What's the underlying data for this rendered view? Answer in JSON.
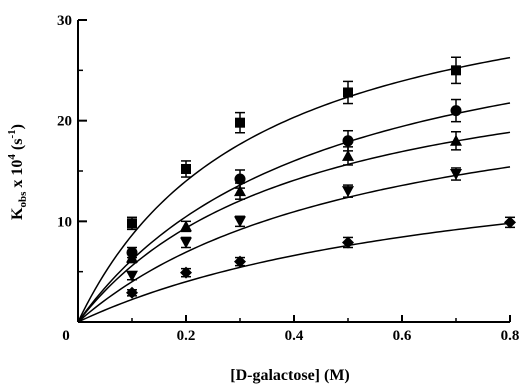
{
  "chart_data": {
    "type": "scatter",
    "xlabel": "[D-galactose] (M)",
    "ylabel_parts": [
      "K",
      "obs",
      " x 10",
      "4",
      " (s",
      "-1",
      ")"
    ],
    "xlim": [
      0,
      0.8
    ],
    "ylim": [
      0,
      30
    ],
    "xticks": [
      "0",
      "0.2",
      "0.4",
      "0.6",
      "0.8"
    ],
    "yticks": [
      "10",
      "20",
      "30"
    ],
    "grid": false,
    "legend": "none",
    "series": [
      {
        "marker": "square",
        "x": [
          0,
          0.1,
          0.2,
          0.3,
          0.5,
          0.7
        ],
        "y": [
          0,
          9.8,
          15.2,
          19.8,
          22.8,
          25.0
        ],
        "err": [
          0,
          0.6,
          0.8,
          1.0,
          1.1,
          1.3
        ],
        "fit": {
          "vmax": 37.1,
          "km": 0.33
        }
      },
      {
        "marker": "circle",
        "x": [
          0,
          0.1,
          0.3,
          0.5,
          0.7
        ],
        "y": [
          0,
          6.9,
          14.2,
          18.0,
          21.0
        ],
        "err": [
          0,
          0.5,
          0.9,
          1.0,
          1.1
        ],
        "fit": {
          "vmax": 34.0,
          "km": 0.45
        }
      },
      {
        "marker": "triangle-up",
        "x": [
          0,
          0.1,
          0.2,
          0.3,
          0.5,
          0.7
        ],
        "y": [
          0,
          6.4,
          9.5,
          13.0,
          16.5,
          18.0
        ],
        "err": [
          0,
          0.5,
          0.5,
          0.8,
          0.9,
          0.9
        ],
        "fit": {
          "vmax": 28.5,
          "km": 0.41
        }
      },
      {
        "marker": "triangle-down",
        "x": [
          0,
          0.1,
          0.2,
          0.3,
          0.5,
          0.7
        ],
        "y": [
          0,
          4.6,
          7.9,
          10.0,
          13.0,
          14.7
        ],
        "err": [
          0,
          0.4,
          0.5,
          0.5,
          0.6,
          0.6
        ],
        "fit": {
          "vmax": 26.0,
          "km": 0.55
        }
      },
      {
        "marker": "diamond",
        "x": [
          0,
          0.1,
          0.2,
          0.3,
          0.5,
          0.8
        ],
        "y": [
          0,
          2.9,
          4.9,
          6.0,
          7.9,
          9.9
        ],
        "err": [
          0,
          0.3,
          0.4,
          0.4,
          0.5,
          0.5
        ],
        "fit": {
          "vmax": 19.0,
          "km": 0.75
        }
      }
    ]
  }
}
